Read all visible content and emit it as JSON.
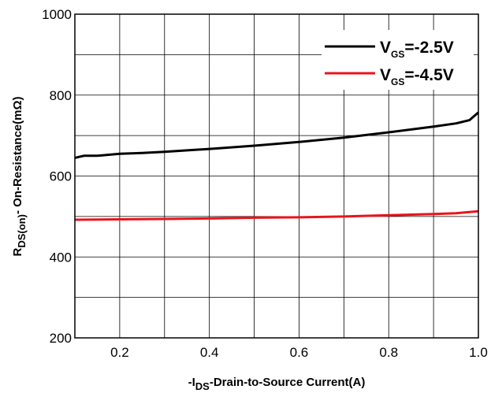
{
  "chart_data": {
    "type": "line",
    "xlim": [
      0.1,
      1.0
    ],
    "ylim": [
      200,
      1000
    ],
    "x_ticks": [
      "0.2",
      "0.4",
      "0.6",
      "0.8",
      "1.0"
    ],
    "y_ticks": [
      "200",
      "400",
      "600",
      "800",
      "1000"
    ],
    "xlabel": {
      "prefix": "-I",
      "sub": "DS",
      "suffix": "-Drain-to-Source Current(A)"
    },
    "ylabel": {
      "prefix": "R",
      "sub": "DS(on)",
      "suffix": "- On-Resistance(mΩ)"
    },
    "grid": true,
    "legend_position": "top-right",
    "series": [
      {
        "name": "VGS=-2.5V",
        "legend": {
          "main": "V",
          "sub": "GS",
          "rest": "=-2.5V"
        },
        "color": "#000000",
        "x": [
          0.1,
          0.12,
          0.15,
          0.2,
          0.25,
          0.3,
          0.4,
          0.5,
          0.6,
          0.7,
          0.8,
          0.9,
          0.95,
          0.98,
          1.0
        ],
        "y": [
          645,
          650,
          650,
          655,
          657,
          660,
          667,
          675,
          684,
          695,
          708,
          722,
          730,
          738,
          757
        ]
      },
      {
        "name": "VGS=-4.5V",
        "legend": {
          "main": "V",
          "sub": "GS",
          "rest": "=-4.5V"
        },
        "color": "#e8141b",
        "x": [
          0.1,
          0.2,
          0.3,
          0.4,
          0.5,
          0.6,
          0.7,
          0.8,
          0.9,
          0.95,
          1.0
        ],
        "y": [
          492,
          493,
          494,
          495,
          497,
          498,
          500,
          503,
          506,
          508,
          513
        ]
      }
    ]
  }
}
